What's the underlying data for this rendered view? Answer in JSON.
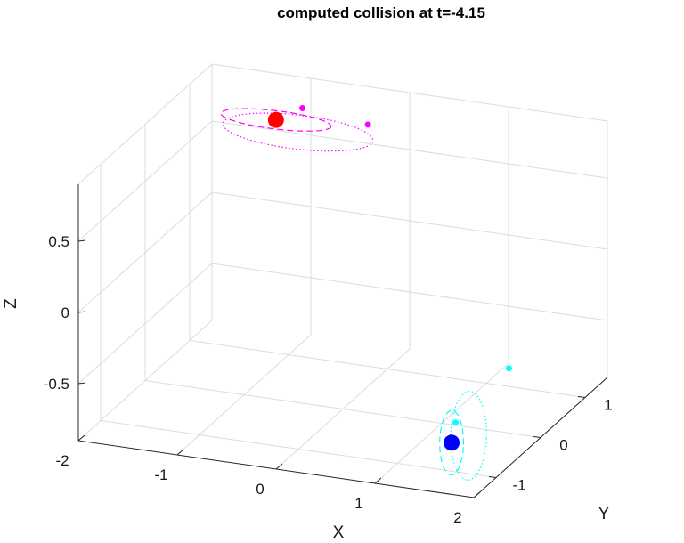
{
  "chart_data": {
    "type": "line3d",
    "title": "computed collision at t=-4.15",
    "xlabel": "X",
    "ylabel": "Y",
    "zlabel": "Z",
    "xlim": [
      -2,
      2
    ],
    "ylim": [
      -1.5,
      1.5
    ],
    "zlim": [
      -0.9,
      0.9
    ],
    "xticks": [
      -2,
      -1,
      0,
      1,
      2
    ],
    "yticks": [
      -1,
      0,
      1
    ],
    "zticks": [
      -0.5,
      0,
      0.5
    ],
    "xtick_labels": [
      "-2",
      "-1",
      "0",
      "1",
      "2"
    ],
    "ytick_labels": [
      "-1",
      "0",
      "1"
    ],
    "ztick_labels": [
      "-0.5",
      "0",
      "0.5"
    ],
    "grid": true,
    "bodies": [
      {
        "role": "host",
        "color": "#ff0000",
        "x": -1.15,
        "y": 1.05,
        "z": 0.72
      },
      {
        "role": "host",
        "color": "#0000ff",
        "x": 1.55,
        "y": -1.0,
        "z": -0.7
      }
    ],
    "satellites": [
      {
        "color": "#ff00ff",
        "x": -0.95,
        "y": 1.2,
        "z": 0.78
      },
      {
        "color": "#ff00ff",
        "x": -0.4,
        "y": 1.45,
        "z": 0.65
      },
      {
        "color": "#00ffff",
        "x": 1.5,
        "y": -0.8,
        "z": -0.62
      },
      {
        "color": "#00ffff",
        "x": 1.95,
        "y": -0.6,
        "z": -0.25
      }
    ],
    "series": [
      {
        "color": "#ff00ff",
        "style": "dashed",
        "center": [
          -1.15,
          1.05,
          0.72
        ],
        "radius": [
          0.55,
          0.2,
          0.0
        ]
      },
      {
        "color": "#ff00ff",
        "style": "dotted",
        "center": [
          -0.95,
          1.1,
          0.64
        ],
        "radius": [
          0.75,
          0.25,
          0.04
        ]
      },
      {
        "color": "#00ffff",
        "style": "dashed",
        "center": [
          1.55,
          -1.0,
          -0.7
        ],
        "radius": [
          0.12,
          0.02,
          0.22
        ]
      },
      {
        "color": "#00ffff",
        "style": "dotted",
        "center": [
          1.7,
          -0.95,
          -0.65
        ],
        "radius": [
          0.18,
          0.04,
          0.3
        ]
      }
    ]
  }
}
